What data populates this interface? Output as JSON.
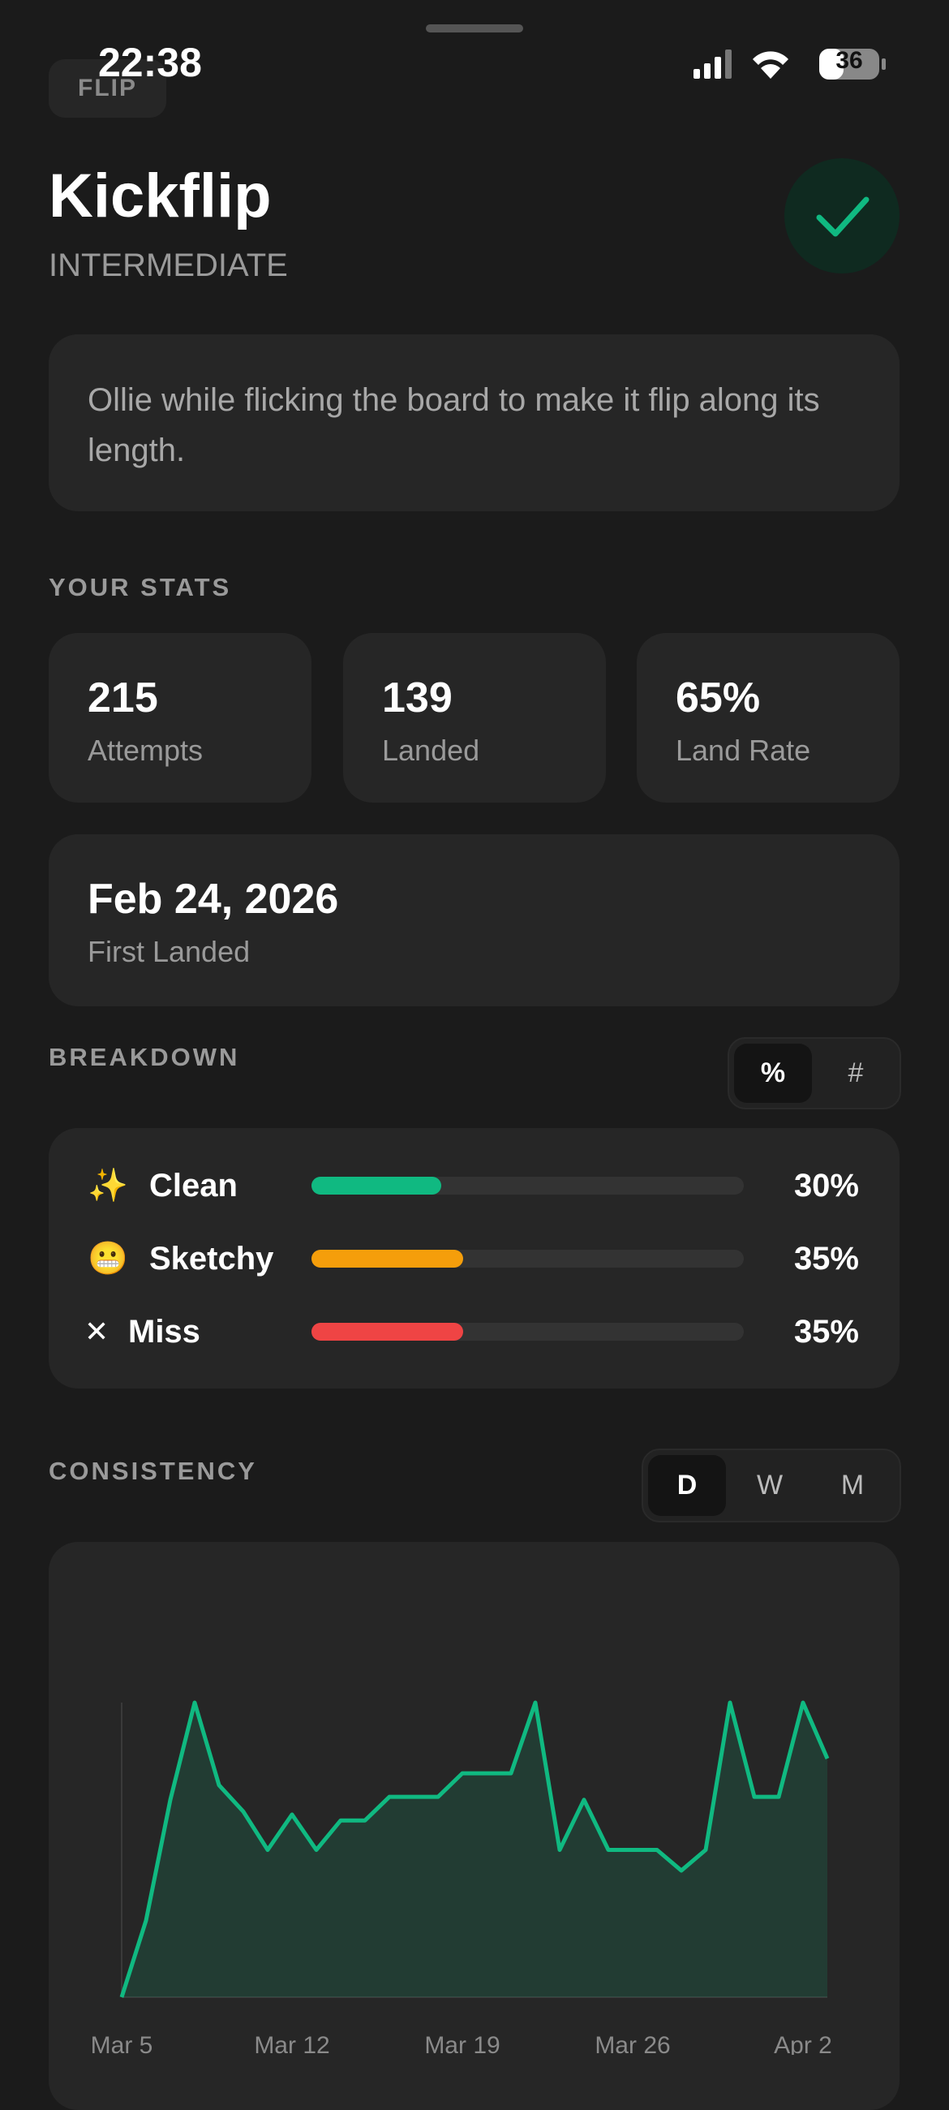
{
  "status_bar": {
    "time": "22:38",
    "battery": "36"
  },
  "header": {
    "category": "FLIP",
    "title": "Kickflip",
    "level": "INTERMEDIATE"
  },
  "description": "Ollie while flicking the board to make it flip along its length.",
  "stats": {
    "heading": "YOUR STATS",
    "items": [
      {
        "value": "215",
        "label": "Attempts"
      },
      {
        "value": "139",
        "label": "Landed"
      },
      {
        "value": "65%",
        "label": "Land Rate"
      }
    ],
    "first_landed": {
      "value": "Feb 24, 2026",
      "label": "First Landed"
    }
  },
  "breakdown": {
    "heading": "BREAKDOWN",
    "modes": [
      "%",
      "#"
    ],
    "rows": [
      {
        "icon": "✨",
        "label": "Clean",
        "value": 30,
        "value_label": "30%",
        "color": "#10b981"
      },
      {
        "icon": "😬",
        "label": "Sketchy",
        "value": 35,
        "value_label": "35%",
        "color": "#f59e0b"
      },
      {
        "icon": "✕",
        "label": "Miss",
        "value": 35,
        "value_label": "35%",
        "color": "#ef4444"
      }
    ]
  },
  "consistency": {
    "heading": "CONSISTENCY",
    "ranges": [
      "D",
      "W",
      "M"
    ],
    "chart_data": {
      "type": "line",
      "categories": [
        "Mar 5",
        null,
        null,
        null,
        null,
        null,
        null,
        "Mar 12",
        null,
        null,
        null,
        null,
        null,
        null,
        "Mar 19",
        null,
        null,
        null,
        null,
        null,
        null,
        "Mar 26",
        null,
        null,
        null,
        null,
        null,
        null,
        "Apr 2",
        null
      ],
      "values": [
        0,
        26,
        67,
        100,
        72,
        63,
        50,
        62,
        50,
        60,
        60,
        68,
        68,
        68,
        76,
        76,
        76,
        100,
        50,
        67,
        50,
        50,
        50,
        43,
        50,
        100,
        68,
        68,
        100,
        81
      ],
      "color": "#10b981",
      "ylim": [
        0,
        100
      ]
    }
  }
}
